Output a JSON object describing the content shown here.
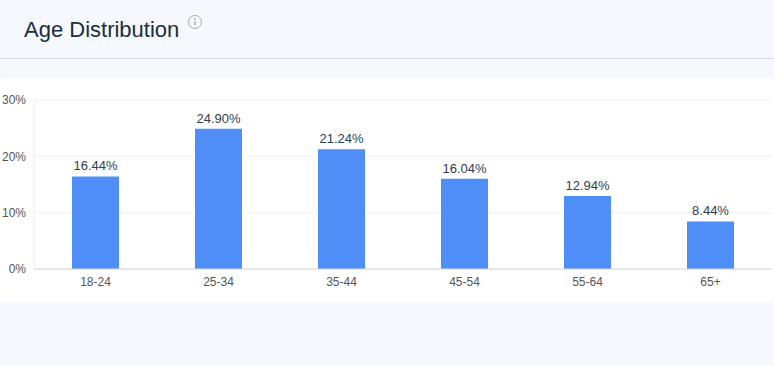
{
  "chart_data": {
    "type": "bar",
    "title": "Age Distribution",
    "categories": [
      "18-24",
      "25-34",
      "35-44",
      "45-54",
      "55-64",
      "65+"
    ],
    "values": [
      16.44,
      24.9,
      21.24,
      16.04,
      12.94,
      8.44
    ],
    "value_labels": [
      "16.44%",
      "24.90%",
      "21.24%",
      "16.04%",
      "12.94%",
      "8.44%"
    ],
    "color": "#4f8ef7",
    "ylim": [
      0,
      30
    ],
    "yticks": [
      {
        "value": 0,
        "label": "0%"
      },
      {
        "value": 10,
        "label": "10%"
      },
      {
        "value": 20,
        "label": "20%"
      },
      {
        "value": 30,
        "label": "30%"
      }
    ],
    "grid": true,
    "data_labels": true
  }
}
